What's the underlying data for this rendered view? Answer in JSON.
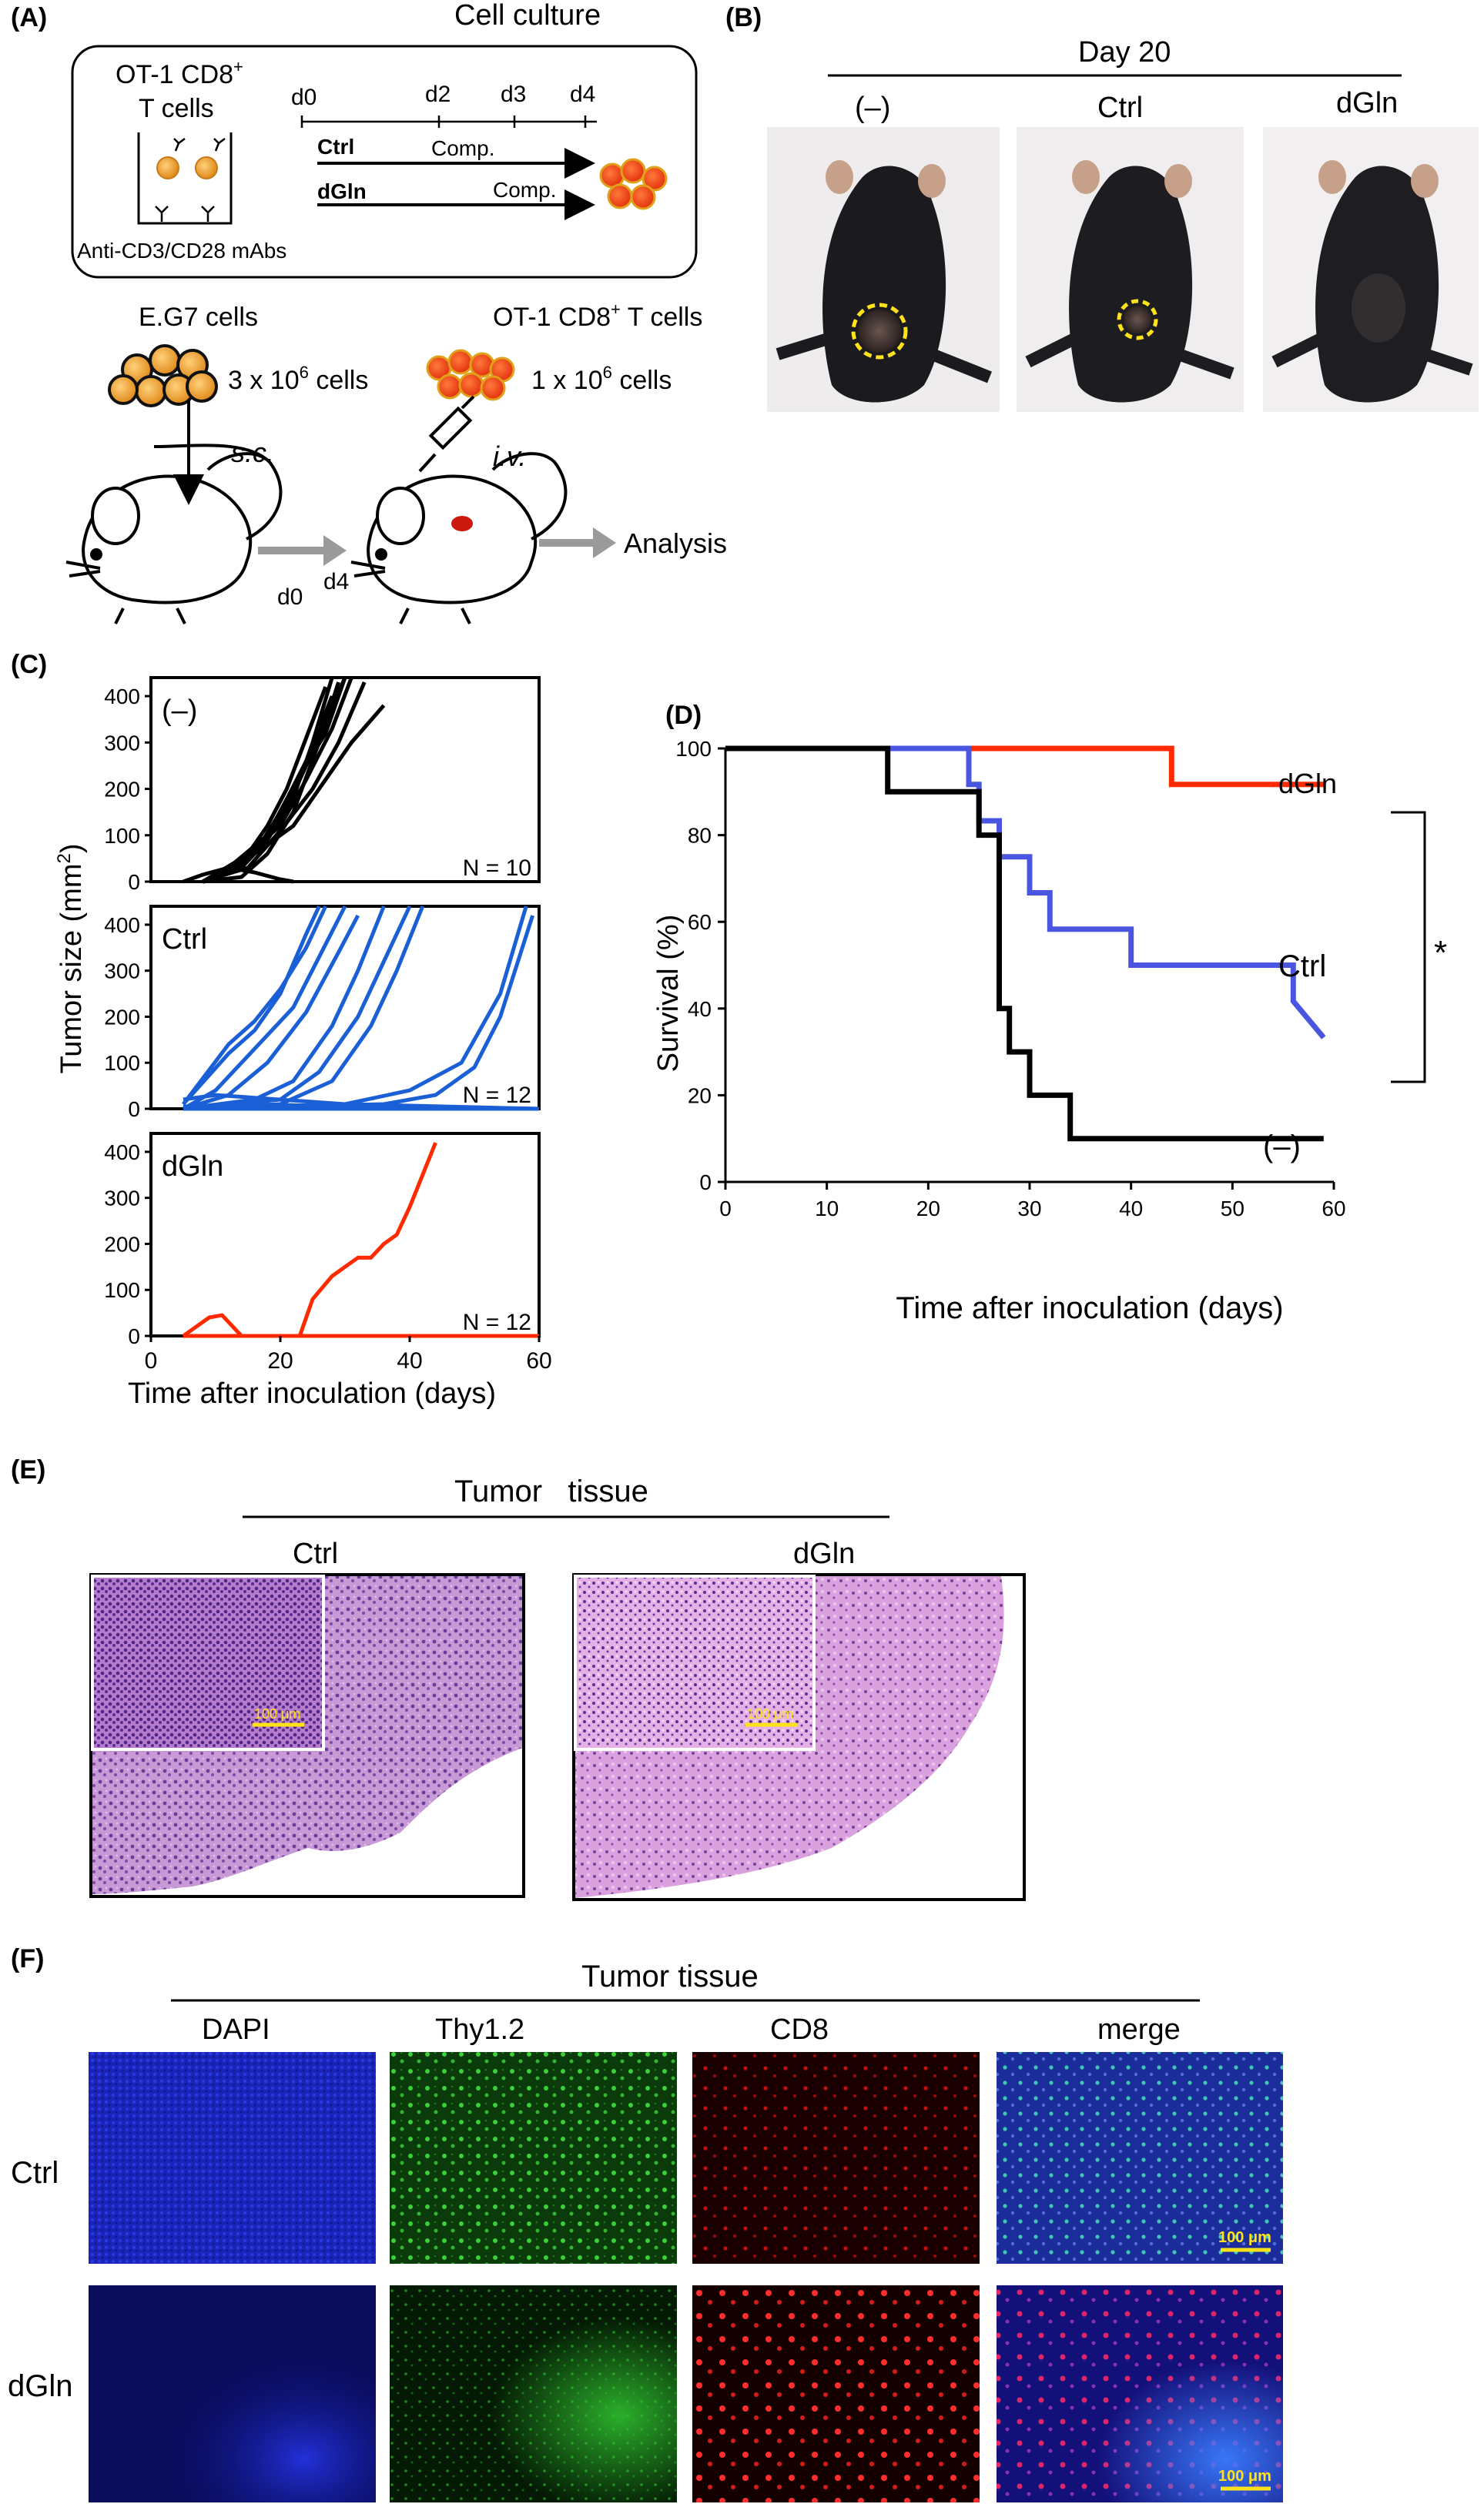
{
  "panelA": {
    "letter": "(A)",
    "title": "Cell culture",
    "cells_label_1": "OT-1 CD8",
    "cells_label_sup": "+",
    "cells_label_2": "T cells",
    "antibody": "Anti-CD3/CD28 mAbs",
    "days": [
      "d0",
      "d2",
      "d3",
      "d4"
    ],
    "ctrl": "Ctrl",
    "dgln": "dGln",
    "comp": "Comp.",
    "eg7": "E.G7 cells",
    "eg7_count": "3 x 10",
    "eg7_exp": "6",
    "eg7_unit": " cells",
    "ot1": "OT-1 CD8",
    "ot1_sup": "+",
    "ot1_tail": " T cells",
    "ot1_count": "1 x 10",
    "ot1_exp": "6",
    "ot1_unit": " cells",
    "sc": "s.c.",
    "iv": "i.v.",
    "d0": "d0",
    "d4": "d4",
    "analysis": "Analysis"
  },
  "panelB": {
    "letter": "(B)",
    "title": "Day 20",
    "groups": [
      "(–)",
      "Ctrl",
      "dGln"
    ]
  },
  "panelC": {
    "letter": "(C)",
    "ylabel": "Tumor size (mm",
    "ylabel_sup": "2",
    "ylabel_tail": ")",
    "xlabel": "Time after inoculation (days)",
    "subplots": [
      {
        "label": "(–)",
        "n": "N = 10",
        "color": "#000000"
      },
      {
        "label": "Ctrl",
        "n": "N = 12",
        "color": "#1a5fd6"
      },
      {
        "label": "dGln",
        "n": "N = 12",
        "color": "#ff2a00"
      }
    ],
    "yticks": [
      "0",
      "100",
      "200",
      "300",
      "400"
    ],
    "xticks": [
      "0",
      "20",
      "40",
      "60"
    ]
  },
  "panelD": {
    "letter": "(D)",
    "ylabel": "Survival (%)",
    "xlabel": "Time after inoculation (days)",
    "yticks": [
      "0",
      "20",
      "40",
      "60",
      "80",
      "100"
    ],
    "xticks": [
      "0",
      "10",
      "20",
      "30",
      "40",
      "50",
      "60"
    ],
    "labels": {
      "dgln": "dGln",
      "ctrl": "Ctrl",
      "neg": "(–)",
      "star": "*"
    }
  },
  "panelE": {
    "letter": "(E)",
    "title": "Tumor   tissue",
    "groups": [
      "Ctrl",
      "dGln"
    ],
    "scale": "100 μm"
  },
  "panelF": {
    "letter": "(F)",
    "title": "Tumor tissue",
    "columns": [
      "DAPI",
      "Thy1.2",
      "CD8",
      "merge"
    ],
    "rows": [
      "Ctrl",
      "dGln"
    ],
    "scale": "100 μm"
  },
  "chart_data": [
    {
      "type": "line",
      "title": "(–)",
      "xlabel": "Time after inoculation (days)",
      "ylabel": "Tumor size (mm2)",
      "xlim": [
        0,
        60
      ],
      "ylim": [
        0,
        440
      ],
      "color": "#000000",
      "series": [
        {
          "x": [
            8,
            14,
            18,
            22,
            25,
            28
          ],
          "y": [
            0,
            30,
            90,
            180,
            300,
            440
          ]
        },
        {
          "x": [
            8,
            14,
            18,
            22,
            26,
            30
          ],
          "y": [
            0,
            40,
            100,
            190,
            310,
            440
          ]
        },
        {
          "x": [
            8,
            12,
            16,
            20,
            24,
            28
          ],
          "y": [
            0,
            20,
            60,
            150,
            260,
            400
          ]
        },
        {
          "x": [
            8,
            14,
            18,
            22,
            26,
            29
          ],
          "y": [
            0,
            10,
            60,
            150,
            300,
            430
          ]
        },
        {
          "x": [
            8,
            14,
            18,
            21,
            24,
            27
          ],
          "y": [
            0,
            40,
            120,
            200,
            310,
            420
          ]
        },
        {
          "x": [
            8,
            14,
            20,
            24,
            28,
            31
          ],
          "y": [
            0,
            50,
            120,
            220,
            330,
            440
          ]
        },
        {
          "x": [
            8,
            12,
            18,
            23,
            27,
            30
          ],
          "y": [
            0,
            30,
            100,
            230,
            320,
            440
          ]
        },
        {
          "x": [
            8,
            15,
            20,
            25,
            29,
            33
          ],
          "y": [
            0,
            30,
            110,
            200,
            300,
            430
          ]
        },
        {
          "x": [
            8,
            16,
            22,
            26,
            31,
            36
          ],
          "y": [
            0,
            60,
            120,
            200,
            300,
            380
          ]
        },
        {
          "x": [
            5,
            8,
            12,
            16,
            20,
            22
          ],
          "y": [
            0,
            15,
            30,
            20,
            5,
            0
          ]
        }
      ]
    },
    {
      "type": "line",
      "title": "Ctrl",
      "xlabel": "Time after inoculation (days)",
      "ylabel": "Tumor size (mm2)",
      "xlim": [
        0,
        60
      ],
      "ylim": [
        0,
        440
      ],
      "color": "#1a5fd6",
      "series": [
        {
          "x": [
            5,
            12,
            16,
            20,
            24,
            26
          ],
          "y": [
            10,
            120,
            170,
            250,
            380,
            440
          ]
        },
        {
          "x": [
            5,
            12,
            16,
            20,
            24,
            27
          ],
          "y": [
            10,
            140,
            190,
            260,
            350,
            440
          ]
        },
        {
          "x": [
            5,
            10,
            16,
            22,
            26,
            30
          ],
          "y": [
            0,
            40,
            130,
            220,
            330,
            440
          ]
        },
        {
          "x": [
            5,
            12,
            18,
            24,
            29,
            32
          ],
          "y": [
            0,
            30,
            100,
            210,
            340,
            420
          ]
        },
        {
          "x": [
            5,
            16,
            22,
            28,
            32,
            36
          ],
          "y": [
            0,
            20,
            60,
            180,
            300,
            440
          ]
        },
        {
          "x": [
            5,
            20,
            26,
            32,
            36,
            40
          ],
          "y": [
            0,
            20,
            80,
            200,
            320,
            440
          ]
        },
        {
          "x": [
            5,
            20,
            28,
            34,
            38,
            42
          ],
          "y": [
            0,
            10,
            60,
            180,
            300,
            440
          ]
        },
        {
          "x": [
            5,
            30,
            40,
            48,
            54,
            58
          ],
          "y": [
            0,
            10,
            40,
            100,
            250,
            440
          ]
        },
        {
          "x": [
            5,
            36,
            44,
            50,
            54,
            59
          ],
          "y": [
            0,
            10,
            30,
            90,
            200,
            420
          ]
        },
        {
          "x": [
            5,
            20,
            40,
            60
          ],
          "y": [
            0,
            0,
            0,
            0
          ]
        },
        {
          "x": [
            5,
            15,
            30,
            60
          ],
          "y": [
            5,
            10,
            5,
            0
          ]
        },
        {
          "x": [
            5,
            10,
            30,
            60
          ],
          "y": [
            20,
            30,
            10,
            0
          ]
        }
      ]
    },
    {
      "type": "line",
      "title": "dGln",
      "xlabel": "Time after inoculation (days)",
      "ylabel": "Tumor size (mm2)",
      "xlim": [
        0,
        60
      ],
      "ylim": [
        0,
        440
      ],
      "color": "#ff2a00",
      "series": [
        {
          "x": [
            5,
            7,
            9,
            11,
            12,
            14,
            23,
            25,
            28,
            32,
            34,
            36,
            38,
            40,
            42,
            44
          ],
          "y": [
            0,
            20,
            40,
            45,
            30,
            0,
            0,
            80,
            130,
            170,
            170,
            200,
            220,
            280,
            350,
            420
          ]
        },
        {
          "x": [
            5,
            60
          ],
          "y": [
            0,
            0
          ]
        }
      ]
    },
    {
      "type": "line",
      "title": "",
      "xlabel": "Time after inoculation (days)",
      "ylabel": "Survival (%)",
      "xlim": [
        0,
        60
      ],
      "ylim": [
        0,
        100
      ],
      "series": [
        {
          "name": "dGln",
          "color": "#ff2a00",
          "x": [
            0,
            44,
            44,
            59
          ],
          "y": [
            100,
            100,
            91.7,
            91.7
          ]
        },
        {
          "name": "Ctrl",
          "color": "#4a55e0",
          "x": [
            0,
            24,
            24,
            25,
            25,
            27,
            27,
            30,
            30,
            32,
            32,
            40,
            40,
            56,
            56,
            59
          ],
          "y": [
            100,
            100,
            91.7,
            91.7,
            83.3,
            83.3,
            75,
            75,
            66.7,
            66.7,
            58.3,
            58.3,
            50,
            50,
            41.7,
            33.3
          ]
        },
        {
          "name": "(–)",
          "color": "#000000",
          "x": [
            0,
            16,
            16,
            25,
            25,
            27,
            27,
            28,
            28,
            30,
            30,
            34,
            34,
            59
          ],
          "y": [
            100,
            100,
            90,
            90,
            80,
            80,
            40,
            40,
            30,
            30,
            20,
            20,
            10,
            10
          ]
        }
      ]
    }
  ]
}
